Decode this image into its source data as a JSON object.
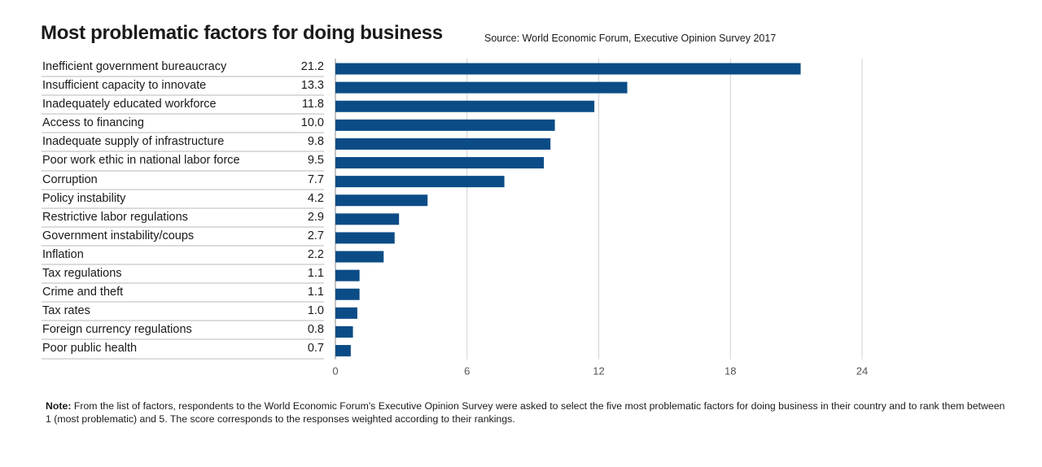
{
  "title": "Most problematic factors for doing business",
  "source": "Source: World Economic Forum, Executive Opinion Survey 2017",
  "note": {
    "label": "Note:",
    "text": " From the list of factors, respondents to the World Economic Forum's Executive Opinion Survey were asked to select the five most problematic factors for doing business in their country and to rank them between 1 (most problematic) and 5. The score corresponds to the responses weighted according to their rankings."
  },
  "colors": {
    "bar": "#0b4c86",
    "grid": "#d0d0d0",
    "axis": "#888888"
  },
  "chart_data": {
    "type": "bar",
    "orientation": "horizontal",
    "categories": [
      "Inefficient government bureaucracy",
      "Insufficient capacity to innovate",
      "Inadequately educated workforce",
      "Access to financing",
      "Inadequate supply of infrastructure",
      "Poor work ethic in national labor force",
      "Corruption",
      "Policy instability",
      "Restrictive labor regulations",
      "Government instability/coups",
      "Inflation",
      "Tax regulations",
      "Crime and theft",
      "Tax rates",
      "Foreign currency regulations",
      "Poor public health"
    ],
    "value_labels": [
      "21.2",
      "13.3",
      "11.8",
      "10.0",
      "9.8",
      "9.5",
      "7.7",
      "4.2",
      "2.9",
      "2.7",
      "2.2",
      "1.1",
      "1.1",
      "1.0",
      "0.8",
      "0.7"
    ],
    "values": [
      21.2,
      13.3,
      11.8,
      10.0,
      9.8,
      9.5,
      7.7,
      4.2,
      2.9,
      2.7,
      2.2,
      1.1,
      1.1,
      1.0,
      0.8,
      0.7
    ],
    "xlim": [
      0,
      24
    ],
    "xticks": [
      0,
      6,
      12,
      18,
      24
    ],
    "grid": true
  }
}
